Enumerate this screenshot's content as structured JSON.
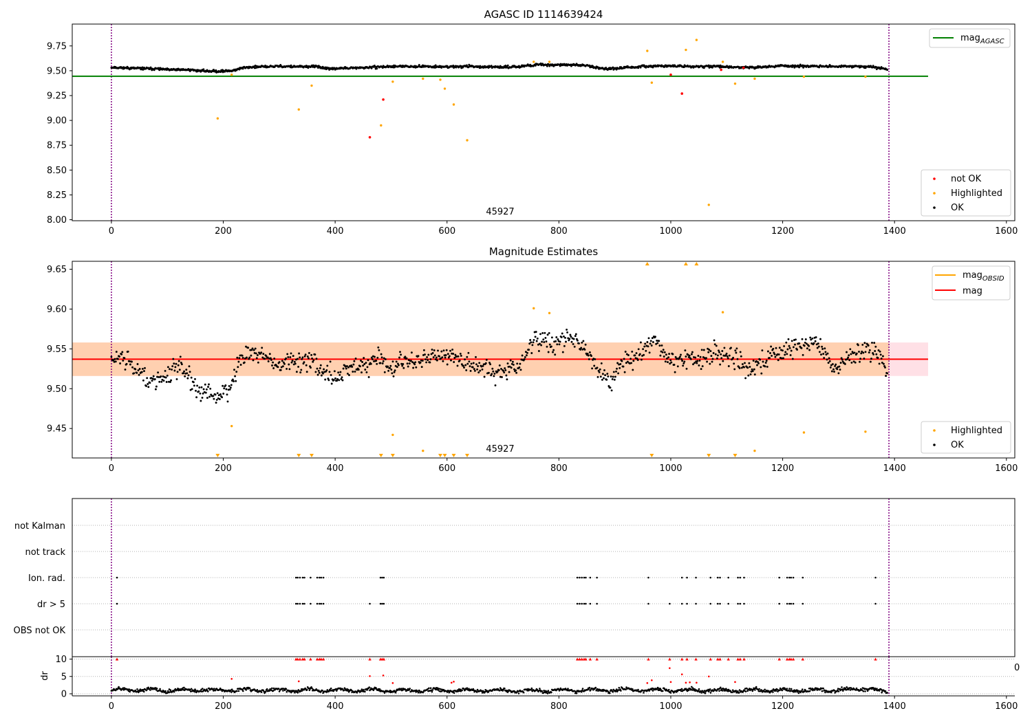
{
  "figure": {
    "background": "#ffffff"
  },
  "colors": {
    "ok": "#000000",
    "highlighted": "#ffa500",
    "not_ok": "#ff0000",
    "mag_agasc": "#008000",
    "mag_obsid": "#ffa500",
    "mag": "#ff0000",
    "band_inner": "#ffd0b0",
    "band_outer": "#ffe0e6",
    "obs_boundary": "#800080",
    "grid": "#b0b0b0"
  },
  "chart_data": [
    {
      "panel": "top",
      "type": "scatter",
      "title": "AGASC ID 1114639424",
      "xlim": [
        -70,
        1615
      ],
      "ylim": [
        7.99,
        9.97
      ],
      "xticks": [
        0,
        200,
        400,
        600,
        800,
        1000,
        1200,
        1400,
        1600
      ],
      "yticks": [
        8.0,
        8.25,
        8.5,
        8.75,
        9.0,
        9.25,
        9.5,
        9.75
      ],
      "ytick_labels": [
        "8.00",
        "8.25",
        "8.50",
        "8.75",
        "9.00",
        "9.25",
        "9.50",
        "9.75"
      ],
      "annotation": {
        "text": "45927",
        "x": 695,
        "y": 8.07
      },
      "obs_boundaries": [
        0,
        1390
      ],
      "mag_agasc": {
        "value": 9.445,
        "x_range": [
          -70,
          1460
        ],
        "label": "mag",
        "label_sub": "AGASC"
      },
      "legend_top_right": [
        {
          "label": "mag",
          "sub": "AGASC",
          "kind": "line",
          "color_key": "mag_agasc"
        }
      ],
      "legend_bottom_right": [
        {
          "label": "not OK",
          "kind": "dot",
          "color_key": "not_ok"
        },
        {
          "label": "Highlighted",
          "kind": "dot",
          "color_key": "highlighted"
        },
        {
          "label": "OK",
          "kind": "dot",
          "color_key": "ok"
        }
      ],
      "ok_trend": [
        [
          0,
          9.535
        ],
        [
          40,
          9.525
        ],
        [
          80,
          9.52
        ],
        [
          100,
          9.51
        ],
        [
          140,
          9.51
        ],
        [
          160,
          9.5
        ],
        [
          190,
          9.495
        ],
        [
          215,
          9.5
        ],
        [
          240,
          9.535
        ],
        [
          300,
          9.545
        ],
        [
          340,
          9.54
        ],
        [
          370,
          9.545
        ],
        [
          380,
          9.52
        ],
        [
          450,
          9.53
        ],
        [
          480,
          9.54
        ],
        [
          540,
          9.545
        ],
        [
          600,
          9.54
        ],
        [
          640,
          9.545
        ],
        [
          680,
          9.535
        ],
        [
          720,
          9.54
        ],
        [
          760,
          9.56
        ],
        [
          800,
          9.56
        ],
        [
          850,
          9.555
        ],
        [
          880,
          9.52
        ],
        [
          920,
          9.53
        ],
        [
          960,
          9.545
        ],
        [
          1000,
          9.55
        ],
        [
          1040,
          9.54
        ],
        [
          1080,
          9.545
        ],
        [
          1120,
          9.535
        ],
        [
          1160,
          9.535
        ],
        [
          1200,
          9.55
        ],
        [
          1250,
          9.545
        ],
        [
          1300,
          9.545
        ],
        [
          1360,
          9.54
        ],
        [
          1388,
          9.51
        ]
      ],
      "highlighted_points": [
        [
          190,
          9.02
        ],
        [
          215,
          9.46
        ],
        [
          335,
          9.11
        ],
        [
          358,
          9.35
        ],
        [
          482,
          8.95
        ],
        [
          503,
          9.39
        ],
        [
          557,
          9.42
        ],
        [
          588,
          9.41
        ],
        [
          596,
          9.32
        ],
        [
          612,
          9.16
        ],
        [
          636,
          8.8
        ],
        [
          755,
          9.59
        ],
        [
          783,
          9.59
        ],
        [
          958,
          9.7
        ],
        [
          966,
          9.38
        ],
        [
          1027,
          9.71
        ],
        [
          1046,
          9.81
        ],
        [
          1068,
          8.15
        ],
        [
          1093,
          9.59
        ],
        [
          1115,
          9.37
        ],
        [
          1150,
          9.42
        ],
        [
          1238,
          9.44
        ],
        [
          1348,
          9.44
        ]
      ],
      "not_ok_points": [
        [
          462,
          8.83
        ],
        [
          486,
          9.21
        ],
        [
          1000,
          9.46
        ],
        [
          1020,
          9.27
        ],
        [
          1090,
          9.51
        ],
        [
          1130,
          9.53
        ]
      ]
    },
    {
      "panel": "middle",
      "type": "scatter",
      "title": "Magnitude Estimates",
      "xlim": [
        -70,
        1615
      ],
      "ylim": [
        9.413,
        9.66
      ],
      "xticks": [
        0,
        200,
        400,
        600,
        800,
        1000,
        1200,
        1400,
        1600
      ],
      "yticks": [
        9.45,
        9.5,
        9.55,
        9.6,
        9.65
      ],
      "ytick_labels": [
        "9.45",
        "9.50",
        "9.55",
        "9.60",
        "9.65"
      ],
      "annotation": {
        "text": "45927",
        "x": 695,
        "y": 9.419
      },
      "obs_boundaries": [
        0,
        1390
      ],
      "mag": {
        "value": 9.537,
        "x_range": [
          -70,
          1460
        ],
        "label": "mag"
      },
      "mag_band_inner": {
        "low": 9.516,
        "high": 9.558,
        "x_range": [
          -70,
          1390
        ]
      },
      "mag_band_outer": {
        "low": 9.516,
        "high": 9.558,
        "x_range": [
          -70,
          1460
        ]
      },
      "legend_top_right": [
        {
          "label": "mag",
          "sub": "OBSID",
          "kind": "line",
          "color_key": "mag_obsid"
        },
        {
          "label": "mag",
          "kind": "line",
          "color_key": "mag"
        }
      ],
      "legend_bottom_right": [
        {
          "label": "Highlighted",
          "kind": "dot",
          "color_key": "highlighted"
        },
        {
          "label": "OK",
          "kind": "dot",
          "color_key": "ok"
        }
      ],
      "ok_trend": [
        [
          0,
          9.535
        ],
        [
          20,
          9.54
        ],
        [
          40,
          9.525
        ],
        [
          60,
          9.515
        ],
        [
          80,
          9.51
        ],
        [
          100,
          9.515
        ],
        [
          120,
          9.53
        ],
        [
          140,
          9.52
        ],
        [
          150,
          9.5
        ],
        [
          170,
          9.495
        ],
        [
          190,
          9.49
        ],
        [
          210,
          9.5
        ],
        [
          230,
          9.54
        ],
        [
          260,
          9.545
        ],
        [
          280,
          9.535
        ],
        [
          300,
          9.53
        ],
        [
          330,
          9.535
        ],
        [
          360,
          9.535
        ],
        [
          380,
          9.52
        ],
        [
          400,
          9.515
        ],
        [
          430,
          9.525
        ],
        [
          460,
          9.53
        ],
        [
          480,
          9.54
        ],
        [
          500,
          9.52
        ],
        [
          520,
          9.535
        ],
        [
          560,
          9.535
        ],
        [
          600,
          9.545
        ],
        [
          620,
          9.535
        ],
        [
          660,
          9.53
        ],
        [
          700,
          9.52
        ],
        [
          730,
          9.53
        ],
        [
          760,
          9.565
        ],
        [
          790,
          9.555
        ],
        [
          820,
          9.565
        ],
        [
          850,
          9.545
        ],
        [
          870,
          9.525
        ],
        [
          890,
          9.51
        ],
        [
          910,
          9.53
        ],
        [
          950,
          9.545
        ],
        [
          970,
          9.56
        ],
        [
          1000,
          9.535
        ],
        [
          1020,
          9.535
        ],
        [
          1050,
          9.535
        ],
        [
          1080,
          9.545
        ],
        [
          1110,
          9.54
        ],
        [
          1140,
          9.525
        ],
        [
          1170,
          9.535
        ],
        [
          1200,
          9.55
        ],
        [
          1230,
          9.55
        ],
        [
          1260,
          9.56
        ],
        [
          1290,
          9.525
        ],
        [
          1320,
          9.54
        ],
        [
          1350,
          9.55
        ],
        [
          1375,
          9.54
        ],
        [
          1388,
          9.51
        ]
      ],
      "highlighted_points": [
        [
          215,
          9.453
        ],
        [
          503,
          9.442
        ],
        [
          557,
          9.422
        ],
        [
          755,
          9.601
        ],
        [
          783,
          9.595
        ],
        [
          1093,
          9.596
        ],
        [
          1150,
          9.422
        ],
        [
          1238,
          9.445
        ],
        [
          1348,
          9.446
        ]
      ],
      "highlighted_above": [
        958,
        1027,
        1046
      ],
      "highlighted_below": [
        190,
        335,
        358,
        482,
        503,
        588,
        596,
        612,
        636,
        966,
        1068,
        1115
      ]
    },
    {
      "panel": "flags",
      "type": "scatter",
      "xlim": [
        -70,
        1615
      ],
      "categories": [
        "not Kalman",
        "not track",
        "Ion. rad.",
        "dr > 5",
        "OBS not OK"
      ],
      "obs_boundaries": [
        0,
        1390
      ],
      "points": {
        "Ion. rad.": [
          10,
          330,
          333,
          337,
          342,
          345,
          356,
          368,
          372,
          375,
          379,
          481,
          484,
          487,
          833,
          837,
          841,
          845,
          848,
          856,
          868,
          960,
          1020,
          1029,
          1045,
          1071,
          1084,
          1088,
          1103,
          1120,
          1124,
          1131,
          1194,
          1208,
          1212,
          1215,
          1219,
          1236,
          1366
        ],
        "dr > 5": [
          10,
          330,
          333,
          337,
          342,
          345,
          356,
          368,
          372,
          375,
          379,
          462,
          481,
          484,
          487,
          833,
          837,
          841,
          845,
          848,
          856,
          868,
          960,
          998,
          1020,
          1029,
          1045,
          1071,
          1084,
          1088,
          1103,
          1120,
          1124,
          1131,
          1194,
          1208,
          1212,
          1215,
          1219,
          1236,
          1366
        ]
      }
    },
    {
      "panel": "dr",
      "type": "scatter",
      "xlim": [
        -70,
        1615
      ],
      "ylim": [
        -0.6,
        10.7
      ],
      "ylabel": "dr",
      "yticks": [
        0,
        5,
        10
      ],
      "ytick_labels": [
        "0",
        "5",
        "10"
      ],
      "xticks": [
        0,
        200,
        400,
        600,
        800,
        1000,
        1200,
        1400,
        1600
      ],
      "stray_label": "0",
      "obs_boundaries": [
        0,
        1390
      ],
      "ok_trend": [
        [
          0,
          1.2
        ],
        [
          100,
          1.0
        ],
        [
          200,
          1.1
        ],
        [
          300,
          1.0
        ],
        [
          400,
          1.1
        ],
        [
          500,
          1.0
        ],
        [
          600,
          1.0
        ],
        [
          700,
          0.9
        ],
        [
          800,
          1.0
        ],
        [
          900,
          1.1
        ],
        [
          1000,
          1.0
        ],
        [
          1100,
          1.0
        ],
        [
          1200,
          1.0
        ],
        [
          1300,
          1.0
        ],
        [
          1350,
          1.6
        ],
        [
          1388,
          0.3
        ]
      ],
      "red_mid_points": [
        [
          215,
          4.3
        ],
        [
          335,
          3.6
        ],
        [
          462,
          5.1
        ],
        [
          486,
          5.3
        ],
        [
          503,
          3.1
        ],
        [
          608,
          3.2
        ],
        [
          612,
          3.5
        ],
        [
          958,
          3.1
        ],
        [
          966,
          3.9
        ],
        [
          998,
          7.4
        ],
        [
          1000,
          3.4
        ],
        [
          1020,
          5.6
        ],
        [
          1027,
          3.2
        ],
        [
          1034,
          3.3
        ],
        [
          1046,
          3.2
        ],
        [
          1068,
          5.0
        ],
        [
          1115,
          3.4
        ]
      ]
    }
  ]
}
